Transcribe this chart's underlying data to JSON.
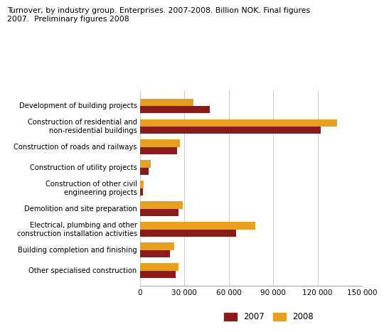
{
  "title": "Turnover, by industry group. Enterprises. 2007-2008. Billion NOK. Final figures\n2007.  Preliminary figures 2008",
  "categories": [
    "Development of building projects",
    "Construction of residential and\nnon-residential buildings",
    "Construction of roads and railways",
    "Construction of utility projects",
    "Construction of other civil\nengineering projects",
    "Demolition and site preparation",
    "Electrical, plumbing and other\nconstruction installation activities",
    "Building completion and finishing",
    "Other specialised construction"
  ],
  "values_2007": [
    47000,
    122000,
    25000,
    6000,
    2000,
    26000,
    65000,
    20000,
    24000
  ],
  "values_2008": [
    36000,
    133000,
    27000,
    7500,
    2500,
    29000,
    78000,
    23000,
    26000
  ],
  "color_2007": "#8B1A1A",
  "color_2008": "#E8A020",
  "xlim": [
    0,
    150000
  ],
  "xticks": [
    0,
    30000,
    60000,
    90000,
    120000,
    150000
  ],
  "xtick_labels": [
    "0",
    "30 000",
    "60 000",
    "90 000",
    "120 000",
    "150 000"
  ],
  "background_color": "#ffffff",
  "grid_color": "#cccccc",
  "bar_height": 0.35,
  "legend_labels": [
    "2007",
    "2008"
  ]
}
